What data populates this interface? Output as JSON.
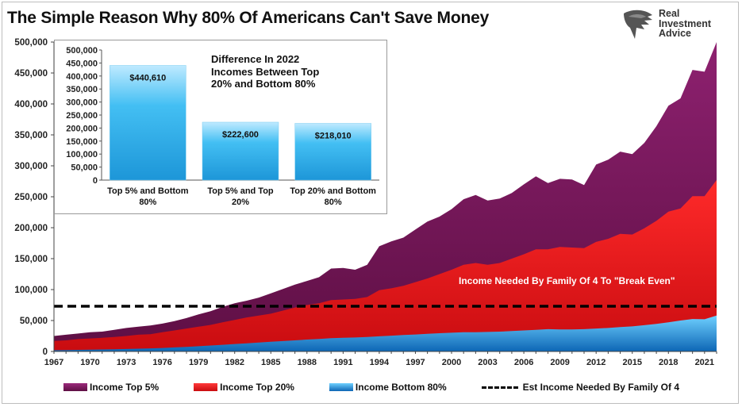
{
  "title": "The Simple Reason Why 80% Of Americans Can't Save Money",
  "logo": {
    "line1": "Real",
    "line2": "Investment",
    "line3": "Advice",
    "icon": "eagle-head-icon"
  },
  "chart_data": [
    {
      "type": "area",
      "title": "The Simple Reason Why 80% Of Americans Can't Save Money",
      "xlabel": "",
      "ylabel": "",
      "xlim": [
        1967,
        2022
      ],
      "ylim": [
        0,
        500000
      ],
      "y_ticks": [
        "0",
        "50,000",
        "100,000",
        "150,000",
        "200,000",
        "250,000",
        "300,000",
        "350,000",
        "400,000",
        "450,000",
        "500,000"
      ],
      "x_ticks": [
        "1967",
        "1970",
        "1973",
        "1976",
        "1979",
        "1982",
        "1985",
        "1988",
        "1991",
        "1994",
        "1997",
        "2000",
        "2003",
        "2006",
        "2009",
        "2012",
        "2015",
        "2018",
        "2021"
      ],
      "x": [
        1967,
        1968,
        1969,
        1970,
        1971,
        1972,
        1973,
        1974,
        1975,
        1976,
        1977,
        1978,
        1979,
        1980,
        1981,
        1982,
        1983,
        1984,
        1985,
        1986,
        1987,
        1988,
        1989,
        1990,
        1991,
        1992,
        1993,
        1994,
        1995,
        1996,
        1997,
        1998,
        1999,
        2000,
        2001,
        2002,
        2003,
        2004,
        2005,
        2006,
        2007,
        2008,
        2009,
        2010,
        2011,
        2012,
        2013,
        2014,
        2015,
        2016,
        2017,
        2018,
        2019,
        2020,
        2021,
        2022
      ],
      "series": [
        {
          "name": "Income Top 5%",
          "color": "#7b1b5c",
          "values": [
            25000,
            27000,
            29000,
            31000,
            32000,
            35000,
            38000,
            40000,
            42000,
            45000,
            49000,
            54000,
            60000,
            65000,
            72000,
            78000,
            82000,
            87000,
            94000,
            101000,
            108000,
            114000,
            120000,
            134000,
            135000,
            132000,
            140000,
            170000,
            178000,
            184000,
            197000,
            210000,
            218000,
            230000,
            246000,
            253000,
            244000,
            247000,
            256000,
            270000,
            283000,
            272000,
            279000,
            278000,
            269000,
            302000,
            310000,
            323000,
            319000,
            337000,
            364000,
            397000,
            409000,
            455000,
            452000,
            500000
          ]
        },
        {
          "name": "Income Top 20%",
          "color": "#e8141b",
          "values": [
            17000,
            18000,
            20000,
            21000,
            22000,
            23500,
            25000,
            27000,
            28000,
            31000,
            34000,
            37000,
            40000,
            43000,
            47000,
            51000,
            55000,
            58000,
            61000,
            66000,
            71000,
            75000,
            78000,
            83000,
            84000,
            85000,
            88000,
            99000,
            102000,
            106000,
            112000,
            118000,
            125000,
            132000,
            140000,
            143000,
            140000,
            143000,
            150000,
            157000,
            165000,
            165000,
            169000,
            168000,
            167000,
            177000,
            182000,
            190000,
            189000,
            199000,
            211000,
            226000,
            231000,
            251000,
            251000,
            277000
          ]
        },
        {
          "name": "Income Bottom 80%",
          "color": "#1e8fd6",
          "values": [
            2000,
            2300,
            2600,
            2900,
            3200,
            3600,
            4000,
            4500,
            5000,
            5700,
            6500,
            7400,
            8500,
            9600,
            10800,
            12000,
            13200,
            14400,
            15600,
            16800,
            18000,
            19200,
            20300,
            21400,
            22000,
            22500,
            23500,
            24500,
            25500,
            26500,
            27500,
            28500,
            29500,
            30300,
            31000,
            31000,
            31500,
            32000,
            33000,
            34000,
            35000,
            36000,
            35500,
            35500,
            36000,
            37000,
            38000,
            39500,
            40500,
            42500,
            44500,
            47000,
            50000,
            52500,
            52000,
            58000
          ]
        }
      ],
      "reference_line": {
        "name": "Est Income Needed By Family Of 4",
        "value": 73000,
        "style": "dashed",
        "color": "#000000"
      },
      "annotation": "Income Needed By Family Of 4 To \"Break Even\"",
      "legend": "bottom",
      "grid": false
    },
    {
      "type": "bar",
      "title": "Difference In 2022 Incomes Between Top 20% and Bottom 80%",
      "categories": [
        "Top 5% and Bottom 80%",
        "Top 5% and Top 20%",
        "Top 20% and Bottom 80%"
      ],
      "values": [
        440610,
        222600,
        218010
      ],
      "data_labels": [
        "$440,610",
        "$222,600",
        "$218,010"
      ],
      "ylim": [
        0,
        500000
      ],
      "y_ticks": [
        "0",
        "50,000",
        "100,000",
        "150,000",
        "200,000",
        "250,000",
        "300,000",
        "350,000",
        "400,000",
        "450,000",
        "500,000"
      ],
      "color": "#35b6f0",
      "grid": false
    }
  ]
}
